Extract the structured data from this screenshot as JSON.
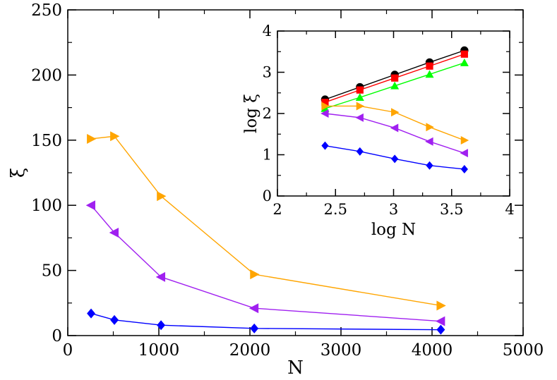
{
  "chart_data": [
    {
      "type": "line",
      "name": "main",
      "xlabel": "N",
      "ylabel": "ξ",
      "xlim": [
        0,
        5000
      ],
      "ylim": [
        0,
        250
      ],
      "xticks": [
        "0",
        "1000",
        "2000",
        "3000",
        "4000",
        "5000"
      ],
      "yticks": [
        "0",
        "50",
        "100",
        "150",
        "200",
        "250"
      ],
      "series": [
        {
          "name": "orange",
          "color": "#FFA500",
          "marker": "triangle-right",
          "x": [
            256,
            512,
            1024,
            2048,
            4096
          ],
          "y": [
            151,
            153,
            107,
            47,
            23
          ]
        },
        {
          "name": "purple",
          "color": "#A020F0",
          "marker": "triangle-left",
          "x": [
            256,
            512,
            1024,
            2048,
            4096
          ],
          "y": [
            100,
            79,
            45,
            21,
            11
          ]
        },
        {
          "name": "blue",
          "color": "#0000FF",
          "marker": "diamond",
          "x": [
            256,
            512,
            1024,
            2048,
            4096
          ],
          "y": [
            17,
            12,
            8,
            5.5,
            4.5
          ]
        }
      ]
    },
    {
      "type": "line",
      "name": "inset",
      "xlabel": "log N",
      "ylabel": "log ξ",
      "xlim": [
        2,
        4
      ],
      "ylim": [
        0,
        4
      ],
      "xticks": [
        "2",
        "2.5",
        "3",
        "3.5",
        "4"
      ],
      "yticks": [
        "0",
        "1",
        "2",
        "3",
        "4"
      ],
      "series": [
        {
          "name": "black",
          "color": "#000000",
          "marker": "circle",
          "x": [
            2.41,
            2.71,
            3.01,
            3.31,
            3.61
          ],
          "y": [
            2.34,
            2.64,
            2.94,
            3.24,
            3.53
          ]
        },
        {
          "name": "red",
          "color": "#FF0000",
          "marker": "square",
          "x": [
            2.41,
            2.71,
            3.01,
            3.31,
            3.61
          ],
          "y": [
            2.27,
            2.57,
            2.86,
            3.15,
            3.44
          ]
        },
        {
          "name": "green",
          "color": "#00FF00",
          "marker": "triangle-up",
          "x": [
            2.41,
            2.71,
            3.01,
            3.31,
            3.61
          ],
          "y": [
            2.12,
            2.39,
            2.67,
            2.95,
            3.23
          ]
        },
        {
          "name": "orange",
          "color": "#FFA500",
          "marker": "triangle-right",
          "x": [
            2.41,
            2.71,
            3.01,
            3.31,
            3.61
          ],
          "y": [
            2.18,
            2.18,
            2.03,
            1.67,
            1.35
          ]
        },
        {
          "name": "purple",
          "color": "#A020F0",
          "marker": "triangle-left",
          "x": [
            2.41,
            2.71,
            3.01,
            3.31,
            3.61
          ],
          "y": [
            2.0,
            1.9,
            1.65,
            1.32,
            1.04
          ]
        },
        {
          "name": "blue",
          "color": "#0000FF",
          "marker": "diamond",
          "x": [
            2.41,
            2.71,
            3.01,
            3.31,
            3.61
          ],
          "y": [
            1.22,
            1.08,
            0.9,
            0.74,
            0.65
          ]
        }
      ]
    }
  ]
}
